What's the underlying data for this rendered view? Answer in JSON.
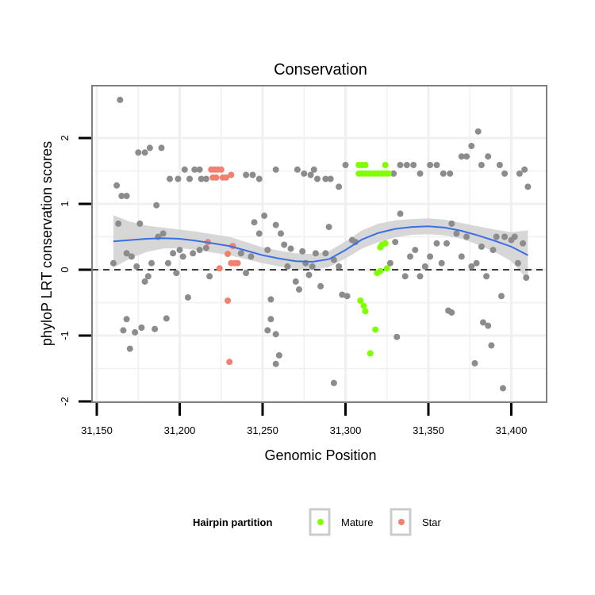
{
  "chart_data": {
    "type": "scatter",
    "title": "Conservation",
    "xlabel": "Genomic Position",
    "ylabel": "phyloP LRT conservation scores",
    "xlim": [
      31150,
      31420
    ],
    "ylim": [
      -2,
      2.6
    ],
    "x_ticks": [
      31150,
      31200,
      31250,
      31300,
      31350,
      31400
    ],
    "x_tick_labels": [
      "31,150",
      "31,200",
      "31,250",
      "31,300",
      "31,350",
      "31,400"
    ],
    "y_ticks": [
      -2,
      -1,
      0,
      1,
      2
    ],
    "y_tick_labels": [
      "-2",
      "-1",
      "0",
      "1",
      "2"
    ],
    "grid": true,
    "reference_line": {
      "y": 0,
      "style": "dashed"
    },
    "legend": {
      "title": "Hairpin partition",
      "placement": "bottom",
      "entries": [
        {
          "name": "Mature",
          "color": "#7fff00"
        },
        {
          "name": "Star",
          "color": "#f08070"
        }
      ]
    },
    "colors": {
      "other": "#8c8c8c",
      "mature": "#7fff00",
      "star": "#f08070",
      "smooth": "#3c6fe6",
      "band": "#d3d3d3",
      "panel_border": "#7f7f7f",
      "grid": "#f0f0f0"
    },
    "series": [
      {
        "name": "Mature",
        "color": "#7fff00",
        "points": [
          [
            31308,
            1.59
          ],
          [
            31310,
            1.59
          ],
          [
            31312,
            1.59
          ],
          [
            31324,
            1.59
          ],
          [
            31308,
            1.46
          ],
          [
            31310,
            1.46
          ],
          [
            31312,
            1.46
          ],
          [
            31314,
            1.46
          ],
          [
            31316,
            1.46
          ],
          [
            31318,
            1.46
          ],
          [
            31320,
            1.46
          ],
          [
            31322,
            1.46
          ],
          [
            31324,
            1.46
          ],
          [
            31326,
            1.46
          ],
          [
            31322,
            0.38
          ],
          [
            31324,
            0.4
          ],
          [
            31321,
            0.34
          ],
          [
            31325,
            0.02
          ],
          [
            31321,
            -0.02
          ],
          [
            31319,
            -0.05
          ],
          [
            31309,
            -0.47
          ],
          [
            31311,
            -0.55
          ],
          [
            31312,
            -0.63
          ],
          [
            31318,
            -0.91
          ],
          [
            31315,
            -1.27
          ]
        ]
      },
      {
        "name": "Star",
        "color": "#f08070",
        "points": [
          [
            31219,
            1.52
          ],
          [
            31221,
            1.52
          ],
          [
            31223,
            1.52
          ],
          [
            31225,
            1.52
          ],
          [
            31220,
            1.4
          ],
          [
            31222,
            1.4
          ],
          [
            31226,
            1.4
          ],
          [
            31228,
            1.4
          ],
          [
            31231,
            1.44
          ],
          [
            31217,
            0.42
          ],
          [
            31232,
            0.36
          ],
          [
            31229,
            0.24
          ],
          [
            31231,
            0.1
          ],
          [
            31233,
            0.1
          ],
          [
            31235,
            0.1
          ],
          [
            31224,
            0.02
          ],
          [
            31229,
            -0.47
          ],
          [
            31230,
            -1.4
          ]
        ]
      },
      {
        "points": [
          [
            31164,
            2.58
          ],
          [
            31175,
            1.78
          ],
          [
            31179,
            1.78
          ],
          [
            31182,
            1.85
          ],
          [
            31189,
            1.85
          ],
          [
            31194,
            1.38
          ],
          [
            31199,
            1.38
          ],
          [
            31203,
            1.52
          ],
          [
            31206,
            1.38
          ],
          [
            31209,
            1.52
          ],
          [
            31212,
            1.52
          ],
          [
            31213,
            1.38
          ],
          [
            31216,
            1.38
          ],
          [
            31240,
            1.44
          ],
          [
            31244,
            1.44
          ],
          [
            31248,
            1.38
          ],
          [
            31258,
            1.52
          ],
          [
            31271,
            1.52
          ],
          [
            31275,
            1.46
          ],
          [
            31279,
            1.44
          ],
          [
            31281,
            1.52
          ],
          [
            31283,
            1.38
          ],
          [
            31288,
            1.38
          ],
          [
            31291,
            1.38
          ],
          [
            31296,
            1.26
          ],
          [
            31300,
            1.59
          ],
          [
            31329,
            1.46
          ],
          [
            31333,
            1.59
          ],
          [
            31337,
            1.59
          ],
          [
            31341,
            1.59
          ],
          [
            31345,
            1.46
          ],
          [
            31351,
            1.59
          ],
          [
            31355,
            1.59
          ],
          [
            31359,
            1.46
          ],
          [
            31363,
            1.46
          ],
          [
            31370,
            1.72
          ],
          [
            31373,
            1.72
          ],
          [
            31376,
            1.88
          ],
          [
            31380,
            2.1
          ],
          [
            31382,
            1.59
          ],
          [
            31386,
            1.72
          ],
          [
            31393,
            1.59
          ],
          [
            31396,
            1.46
          ],
          [
            31405,
            1.46
          ],
          [
            31408,
            1.52
          ],
          [
            31410,
            1.26
          ],
          [
            31162,
            1.28
          ],
          [
            31165,
            1.12
          ],
          [
            31168,
            1.12
          ],
          [
            31186,
            0.98
          ],
          [
            31160,
            0.1
          ],
          [
            31163,
            0.7
          ],
          [
            31168,
            0.25
          ],
          [
            31171,
            0.2
          ],
          [
            31174,
            0.05
          ],
          [
            31176,
            0.7
          ],
          [
            31179,
            -0.18
          ],
          [
            31181,
            -0.1
          ],
          [
            31183,
            0.1
          ],
          [
            31187,
            0.5
          ],
          [
            31190,
            0.55
          ],
          [
            31193,
            0.1
          ],
          [
            31196,
            0.25
          ],
          [
            31198,
            -0.05
          ],
          [
            31200,
            0.3
          ],
          [
            31202,
            0.2
          ],
          [
            31205,
            -0.42
          ],
          [
            31208,
            0.25
          ],
          [
            31212,
            0.3
          ],
          [
            31216,
            0.33
          ],
          [
            31218,
            -0.1
          ],
          [
            31237,
            0.25
          ],
          [
            31240,
            -0.05
          ],
          [
            31243,
            0.2
          ],
          [
            31245,
            0.72
          ],
          [
            31248,
            0.55
          ],
          [
            31251,
            0.82
          ],
          [
            31253,
            0.3
          ],
          [
            31255,
            -0.45
          ],
          [
            31258,
            0.68
          ],
          [
            31261,
            0.55
          ],
          [
            31263,
            0.38
          ],
          [
            31265,
            0.05
          ],
          [
            31267,
            0.32
          ],
          [
            31270,
            -0.18
          ],
          [
            31272,
            -0.3
          ],
          [
            31274,
            0.28
          ],
          [
            31276,
            0.1
          ],
          [
            31278,
            -0.08
          ],
          [
            31280,
            0.05
          ],
          [
            31282,
            0.25
          ],
          [
            31285,
            -0.25
          ],
          [
            31288,
            0.25
          ],
          [
            31290,
            0.65
          ],
          [
            31293,
            0.15
          ],
          [
            31296,
            0.05
          ],
          [
            31298,
            -0.38
          ],
          [
            31301,
            -0.4
          ],
          [
            31304,
            0.45
          ],
          [
            31306,
            0.42
          ],
          [
            31327,
            0.1
          ],
          [
            31330,
            0.42
          ],
          [
            31333,
            0.85
          ],
          [
            31336,
            -0.1
          ],
          [
            31339,
            0.2
          ],
          [
            31342,
            0.3
          ],
          [
            31345,
            -0.1
          ],
          [
            31348,
            0.05
          ],
          [
            31351,
            0.2
          ],
          [
            31355,
            0.4
          ],
          [
            31358,
            0.1
          ],
          [
            31361,
            0.4
          ],
          [
            31364,
            0.7
          ],
          [
            31367,
            0.55
          ],
          [
            31370,
            0.2
          ],
          [
            31373,
            0.5
          ],
          [
            31376,
            0.05
          ],
          [
            31379,
            0.1
          ],
          [
            31382,
            0.35
          ],
          [
            31385,
            -0.1
          ],
          [
            31389,
            0.3
          ],
          [
            31391,
            0.5
          ],
          [
            31394,
            -0.4
          ],
          [
            31396,
            0.5
          ],
          [
            31400,
            0.45
          ],
          [
            31402,
            0.5
          ],
          [
            31404,
            0.1
          ],
          [
            31407,
            0.4
          ],
          [
            31409,
            -0.12
          ],
          [
            31166,
            -0.92
          ],
          [
            31168,
            -0.75
          ],
          [
            31170,
            -1.2
          ],
          [
            31173,
            -0.95
          ],
          [
            31177,
            -0.88
          ],
          [
            31185,
            -0.9
          ],
          [
            31192,
            -0.74
          ],
          [
            31253,
            -0.92
          ],
          [
            31255,
            -0.75
          ],
          [
            31258,
            -0.98
          ],
          [
            31258,
            -1.43
          ],
          [
            31260,
            -1.3
          ],
          [
            31293,
            -1.72
          ],
          [
            31331,
            -1.02
          ],
          [
            31362,
            -0.62
          ],
          [
            31364,
            -0.65
          ],
          [
            31378,
            -1.42
          ],
          [
            31383,
            -0.8
          ],
          [
            31386,
            -0.85
          ],
          [
            31388,
            -1.15
          ],
          [
            31395,
            -1.8
          ]
        ]
      }
    ],
    "smooth": {
      "type": "loess",
      "color": "#3c6fe6",
      "fit": [
        [
          31160,
          0.43
        ],
        [
          31170,
          0.45
        ],
        [
          31180,
          0.47
        ],
        [
          31190,
          0.48
        ],
        [
          31200,
          0.47
        ],
        [
          31210,
          0.44
        ],
        [
          31220,
          0.4
        ],
        [
          31230,
          0.36
        ],
        [
          31240,
          0.29
        ],
        [
          31250,
          0.22
        ],
        [
          31260,
          0.17
        ],
        [
          31270,
          0.13
        ],
        [
          31280,
          0.12
        ],
        [
          31290,
          0.16
        ],
        [
          31300,
          0.3
        ],
        [
          31310,
          0.46
        ],
        [
          31320,
          0.56
        ],
        [
          31330,
          0.62
        ],
        [
          31340,
          0.65
        ],
        [
          31350,
          0.66
        ],
        [
          31360,
          0.64
        ],
        [
          31370,
          0.59
        ],
        [
          31380,
          0.52
        ],
        [
          31390,
          0.44
        ],
        [
          31400,
          0.35
        ],
        [
          31410,
          0.22
        ]
      ],
      "band_halfwidth": [
        0.4,
        0.28,
        0.2,
        0.16,
        0.14,
        0.14,
        0.14,
        0.14,
        0.13,
        0.12,
        0.12,
        0.12,
        0.12,
        0.12,
        0.13,
        0.14,
        0.14,
        0.13,
        0.12,
        0.12,
        0.12,
        0.12,
        0.14,
        0.17,
        0.22,
        0.38
      ]
    }
  }
}
